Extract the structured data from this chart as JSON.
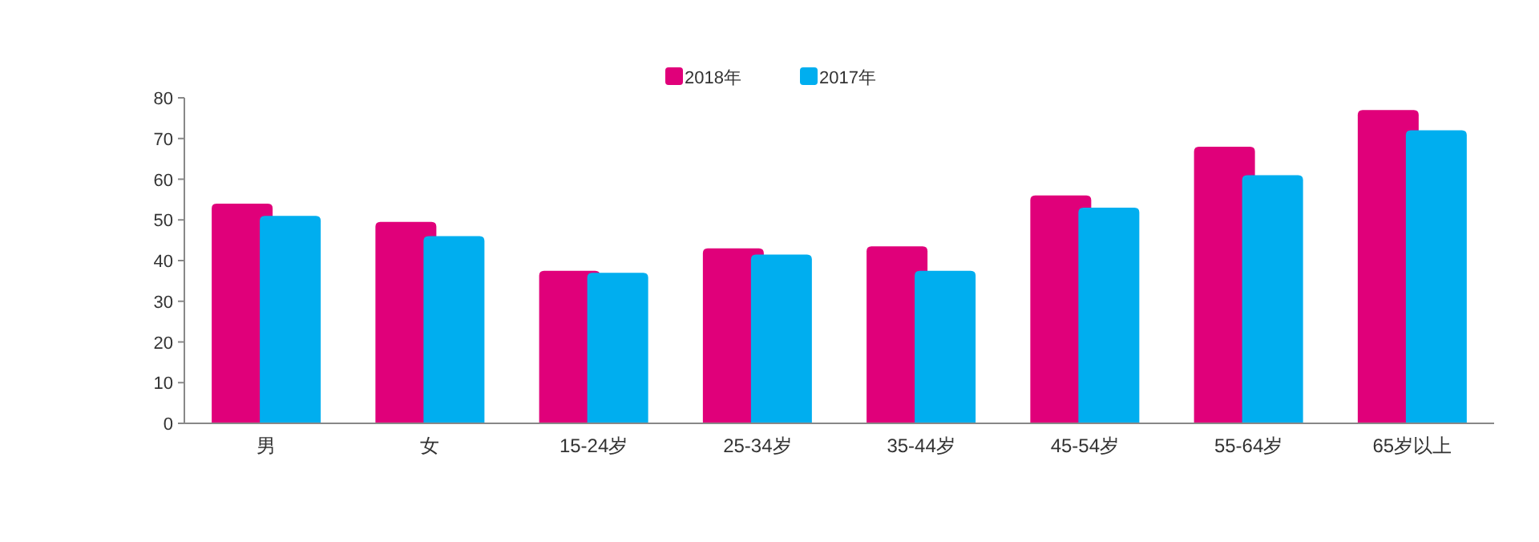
{
  "chart_data": {
    "type": "bar",
    "categories": [
      "男",
      "女",
      "15-24岁",
      "25-34岁",
      "35-44岁",
      "45-54岁",
      "55-64岁",
      "65岁以上"
    ],
    "series": [
      {
        "name": "2018年",
        "color": "#e0007a",
        "values": [
          54,
          49.5,
          37.5,
          43,
          43.5,
          56,
          68,
          77
        ]
      },
      {
        "name": "2017年",
        "color": "#00aeef",
        "values": [
          51,
          46,
          37,
          41.5,
          37.5,
          53,
          61,
          72
        ]
      }
    ],
    "ylim": [
      0,
      80
    ],
    "yticks": [
      0,
      10,
      20,
      30,
      40,
      50,
      60,
      70,
      80
    ],
    "grid": false,
    "legend": "top"
  }
}
